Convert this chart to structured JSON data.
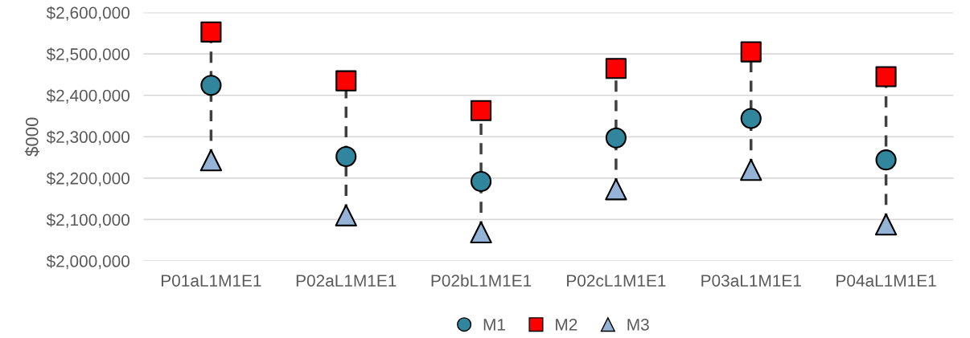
{
  "chart_data": {
    "type": "scatter",
    "ylabel": "$000",
    "categories": [
      "P01aL1M1E1",
      "P02aL1M1E1",
      "P02bL1M1E1",
      "P02cL1M1E1",
      "P03aL1M1E1",
      "P04aL1M1E1"
    ],
    "series": [
      {
        "name": "M1",
        "color": "#31859c",
        "marker": "circle",
        "values": [
          2424000,
          2252000,
          2192000,
          2297000,
          2344000,
          2244000
        ]
      },
      {
        "name": "M2",
        "color": "#ff0000",
        "marker": "square",
        "values": [
          2553000,
          2435000,
          2363000,
          2465000,
          2505000,
          2445000
        ]
      },
      {
        "name": "M3",
        "color": "#95b3d7",
        "marker": "triangle",
        "values": [
          2243000,
          2110000,
          2069000,
          2173000,
          2220000,
          2088000
        ]
      }
    ],
    "line_style": "dashed",
    "ylim": [
      2000000,
      2600000
    ],
    "yticks": [
      {
        "value": 2000000,
        "label": "$2,000,000"
      },
      {
        "value": 2100000,
        "label": "$2,100,000"
      },
      {
        "value": 2200000,
        "label": "$2,200,000"
      },
      {
        "value": 2300000,
        "label": "$2,300,000"
      },
      {
        "value": 2400000,
        "label": "$2,400,000"
      },
      {
        "value": 2500000,
        "label": "$2,500,000"
      },
      {
        "value": 2600000,
        "label": "$2,600,000"
      }
    ],
    "grid": "y",
    "legend": "bottom"
  }
}
